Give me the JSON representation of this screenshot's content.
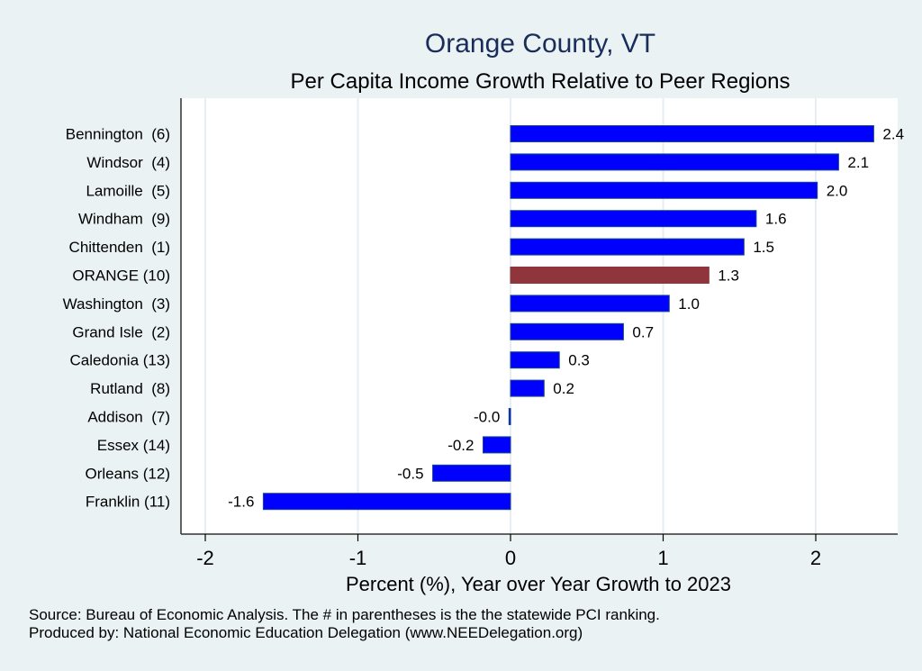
{
  "chart_data": {
    "type": "bar",
    "orientation": "horizontal",
    "title": "Orange County, VT",
    "subtitle": "Per Capita Income Growth Relative to Peer Regions",
    "xlabel": "Percent (%), Year over Year Growth to 2023",
    "ylabel": "",
    "xlim": [
      -2.2,
      2.55
    ],
    "xticks": [
      -2,
      -1,
      0,
      1,
      2
    ],
    "xtick_labels": [
      "-2",
      "-1",
      "0",
      "1",
      "2"
    ],
    "grid": true,
    "categories": [
      "Bennington  (6)",
      "Windsor  (4)",
      "Lamoille  (5)",
      "Windham  (9)",
      "Chittenden  (1)",
      "ORANGE (10)",
      "Washington  (3)",
      "Grand Isle  (2)",
      "Caledonia (13)",
      "Rutland  (8)",
      "Addison  (7)",
      "Essex (14)",
      "Orleans (12)",
      "Franklin (11)"
    ],
    "values": [
      2.38,
      2.15,
      2.01,
      1.61,
      1.53,
      1.3,
      1.04,
      0.74,
      0.32,
      0.22,
      -0.01,
      -0.18,
      -0.51,
      -1.62
    ],
    "value_labels": [
      "2.4",
      "2.1",
      "2.0",
      "1.6",
      "1.5",
      "1.3",
      "1.0",
      "0.7",
      "0.3",
      "0.2",
      "-0.0",
      "-0.2",
      "-0.5",
      "-1.6"
    ],
    "highlight_index": 5,
    "colors": {
      "bar": "#0000ff",
      "bar_outline": "#1a4a8a",
      "highlight": "#90353b",
      "plot_bg": "#ffffff",
      "figure_bg": "#eaf2f3",
      "grid": "#e6eef3",
      "title": "#1a2d5a"
    },
    "notes": [
      "Source: Bureau of Economic Analysis. The # in parentheses is the the statewide PCI ranking.",
      "Produced by: National Economic Education Delegation (www.NEEDelegation.org)"
    ]
  }
}
